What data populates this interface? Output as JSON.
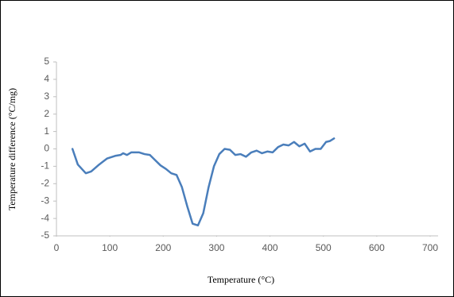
{
  "chart_data": {
    "type": "line",
    "x_label": "Temperature (°C)",
    "y_label": "Temperature difference (°C/mg)",
    "x": [
      30,
      40,
      55,
      65,
      80,
      95,
      110,
      120,
      125,
      132,
      140,
      155,
      165,
      175,
      185,
      195,
      205,
      215,
      225,
      235,
      245,
      255,
      265,
      275,
      285,
      295,
      305,
      315,
      325,
      335,
      345,
      355,
      365,
      375,
      385,
      395,
      405,
      415,
      425,
      435,
      445,
      455,
      465,
      475,
      485,
      495,
      505,
      512,
      520
    ],
    "values": [
      0,
      -0.9,
      -1.4,
      -1.3,
      -0.9,
      -0.55,
      -0.4,
      -0.35,
      -0.25,
      -0.35,
      -0.2,
      -0.2,
      -0.3,
      -0.35,
      -0.65,
      -0.95,
      -1.15,
      -1.4,
      -1.5,
      -2.2,
      -3.3,
      -4.3,
      -4.4,
      -3.7,
      -2.2,
      -1.0,
      -0.3,
      0,
      -0.05,
      -0.35,
      -0.3,
      -0.45,
      -0.2,
      -0.1,
      -0.25,
      -0.15,
      -0.2,
      0.1,
      0.25,
      0.2,
      0.4,
      0.15,
      0.3,
      -0.15,
      0,
      0,
      0.4,
      0.45,
      0.6
    ],
    "color": "#4a7ebb",
    "xlim": [
      0,
      700
    ],
    "xticks": [
      0,
      100,
      200,
      300,
      400,
      500,
      600,
      700
    ],
    "ylim": [
      -5,
      5
    ],
    "yticks": [
      -5,
      -4,
      -3,
      -2,
      -1,
      0,
      1,
      2,
      3,
      4,
      5
    ],
    "grid": false
  }
}
